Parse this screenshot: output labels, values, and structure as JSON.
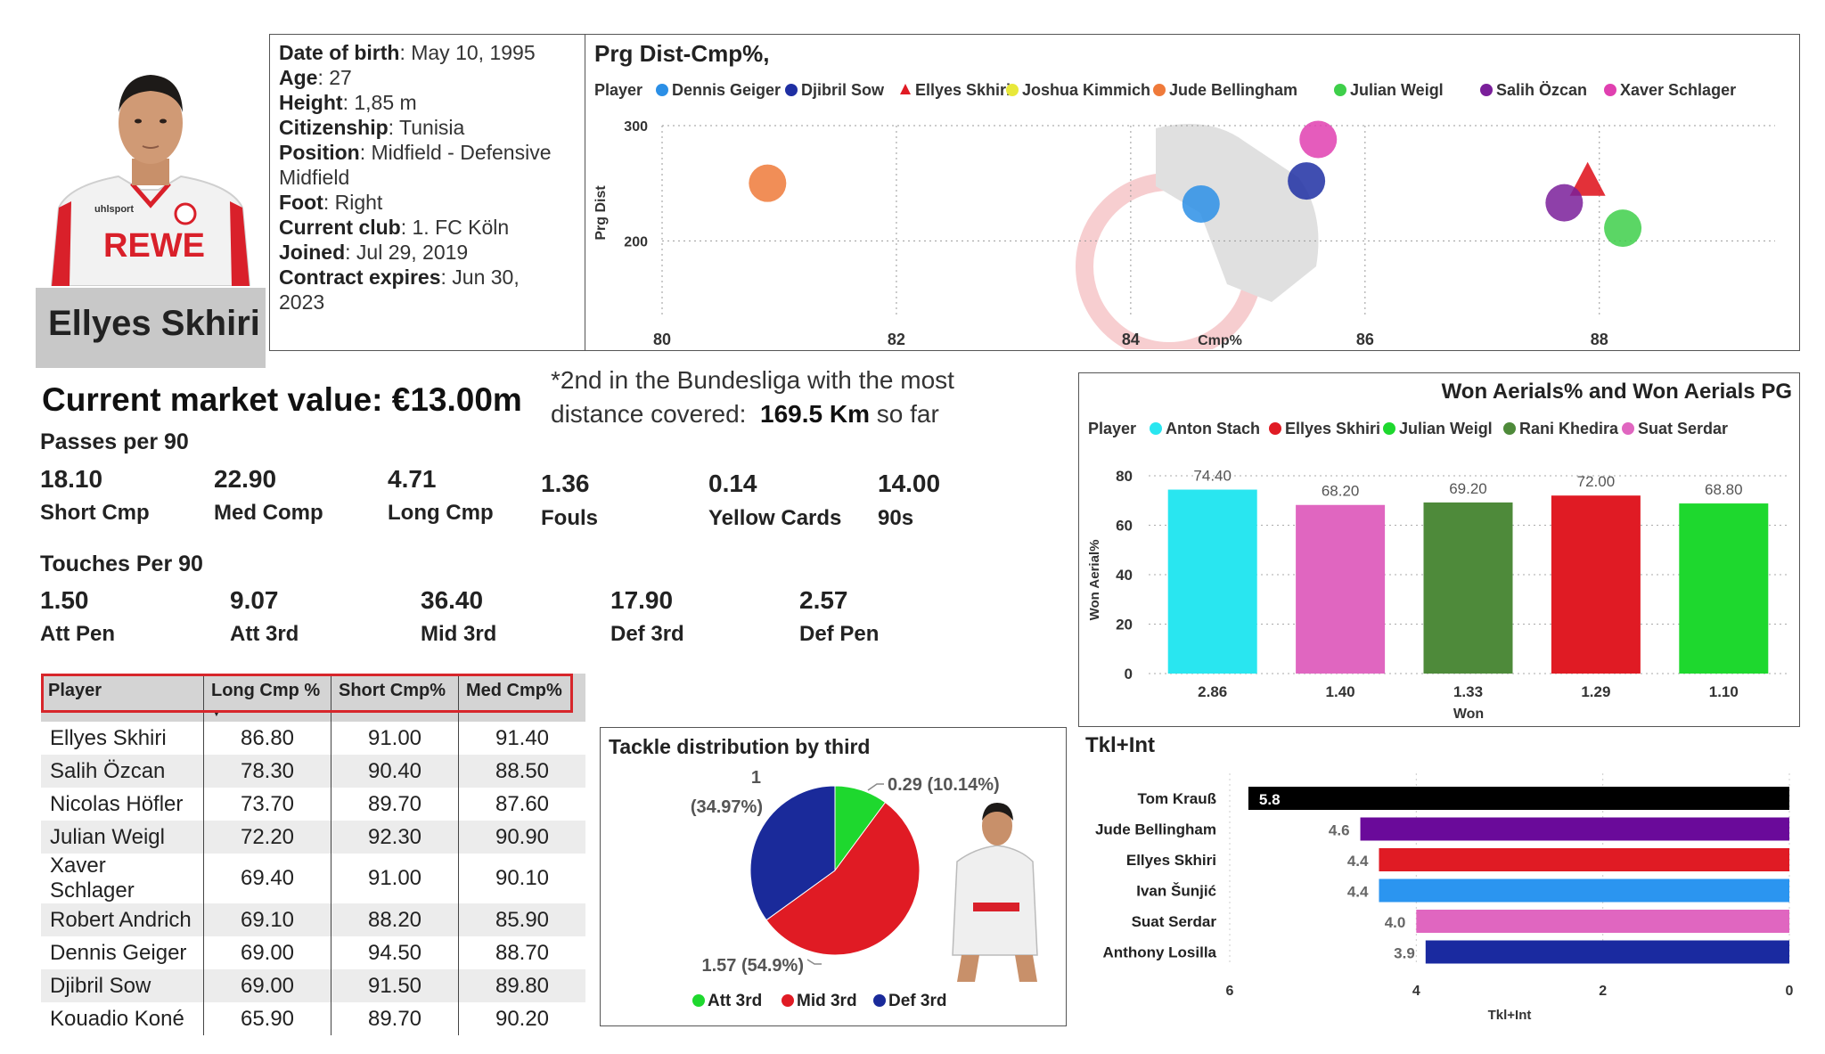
{
  "player": {
    "name": "Ellyes Skhiri",
    "info": [
      {
        "label": "Date of birth",
        "value": "May 10, 1995"
      },
      {
        "label": "Age",
        "value": "27"
      },
      {
        "label": "Height",
        "value": "1,85 m"
      },
      {
        "label": "Citizenship",
        "value": "Tunisia"
      },
      {
        "label": "Position",
        "value": "Midfield - Defensive"
      },
      {
        "label": "",
        "value": "Midfield"
      },
      {
        "label": "Foot",
        "value": "Right"
      },
      {
        "label": "Current club",
        "value": "1. FC Köln"
      },
      {
        "label": "Joined",
        "value": "Jul 29, 2019"
      },
      {
        "label": "Contract expires",
        "value": "Jun 30,"
      },
      {
        "label": "",
        "value": "2023"
      }
    ],
    "shirt_sponsor": "REWE",
    "shirt_brand": "uhlsport"
  },
  "market_value": "Current market value: €13.00m",
  "note": {
    "line1": "*2nd in the Bundesliga with the most",
    "line2_prefix": "distance covered:",
    "line2_value": "169.5 Km",
    "line2_suffix": "so far"
  },
  "passes": {
    "header": "Passes per 90",
    "items": [
      {
        "value": "18.10",
        "label": "Short Cmp"
      },
      {
        "value": "22.90",
        "label": "Med Comp"
      },
      {
        "value": "4.71",
        "label": "Long Cmp"
      },
      {
        "value": "1.36",
        "label": "Fouls"
      },
      {
        "value": "0.14",
        "label": "Yellow Cards"
      },
      {
        "value": "14.00",
        "label": "90s"
      }
    ]
  },
  "touches": {
    "header": "Touches Per 90",
    "items": [
      {
        "value": "1.50",
        "label": "Att Pen"
      },
      {
        "value": "9.07",
        "label": "Att 3rd"
      },
      {
        "value": "36.40",
        "label": "Mid 3rd"
      },
      {
        "value": "17.90",
        "label": "Def 3rd"
      },
      {
        "value": "2.57",
        "label": "Def Pen"
      }
    ]
  },
  "table": {
    "headers": [
      "Player",
      "Long Cmp %",
      "Short Cmp%",
      "Med Cmp%"
    ],
    "rows": [
      [
        "Ellyes Skhiri",
        "86.80",
        "91.00",
        "91.40"
      ],
      [
        "Salih Özcan",
        "78.30",
        "90.40",
        "88.50"
      ],
      [
        "Nicolas Höfler",
        "73.70",
        "89.70",
        "87.60"
      ],
      [
        "Julian Weigl",
        "72.20",
        "92.30",
        "90.90"
      ],
      [
        "Xaver Schlager",
        "69.40",
        "91.00",
        "90.10"
      ],
      [
        "Robert Andrich",
        "69.10",
        "88.20",
        "85.90"
      ],
      [
        "Dennis Geiger",
        "69.00",
        "94.50",
        "88.70"
      ],
      [
        "Djibril Sow",
        "69.00",
        "91.50",
        "89.80"
      ],
      [
        "Kouadio Koné",
        "65.90",
        "89.70",
        "90.20"
      ]
    ],
    "sort_indicator": "▼"
  },
  "chart_data": [
    {
      "type": "scatter",
      "title": "Prg Dist-Cmp%,",
      "xlabel": "Cmp%",
      "ylabel": "Prg Dist",
      "legend_title": "Player",
      "legend_position": "top",
      "xlim": [
        80,
        89.5
      ],
      "ylim": [
        150,
        300
      ],
      "xticks": [
        "80",
        "82",
        "84",
        "86",
        "88"
      ],
      "yticks": [
        "200",
        "300"
      ],
      "grid": true,
      "series": [
        {
          "name": "Dennis Geiger",
          "color": "#2b8fe6",
          "marker": "circle",
          "x": 84.6,
          "y": 232
        },
        {
          "name": "Djibril Sow",
          "color": "#1f2fa3",
          "marker": "circle",
          "x": 85.5,
          "y": 252
        },
        {
          "name": "Ellyes Skhiri",
          "color": "#e01b24",
          "marker": "triangle",
          "x": 87.9,
          "y": 253
        },
        {
          "name": "Joshua Kimmich",
          "color": "#e8e83a",
          "marker": "circle",
          "x": null,
          "y": null
        },
        {
          "name": "Jude Bellingham",
          "color": "#ef7a3a",
          "marker": "circle",
          "x": 80.9,
          "y": 250
        },
        {
          "name": "Julian Weigl",
          "color": "#3ecf4a",
          "marker": "circle",
          "x": 88.2,
          "y": 211
        },
        {
          "name": "Salih Özcan",
          "color": "#7a1f9a",
          "marker": "circle",
          "x": 87.7,
          "y": 233
        },
        {
          "name": "Xaver Schlager",
          "color": "#e040b0",
          "marker": "circle",
          "x": 85.6,
          "y": 288
        }
      ]
    },
    {
      "type": "bar",
      "title": "Won Aerials% and Won Aerials PG",
      "xlabel": "Won",
      "ylabel": "Won Aerial%",
      "legend_title": "Player",
      "legend_position": "top",
      "ylim": [
        0,
        80
      ],
      "yticks": [
        "0",
        "20",
        "40",
        "60",
        "80"
      ],
      "grid": true,
      "categories": [
        "2.86",
        "1.40",
        "1.33",
        "1.29",
        "1.10"
      ],
      "series": [
        {
          "name": "Anton Stach",
          "color": "#29e6f0",
          "value": 74.4,
          "label": "74.40"
        },
        {
          "name": "Suat Serdar",
          "color": "#e066c0",
          "value": 68.2,
          "label": "68.20"
        },
        {
          "name": "Rani Khedira",
          "color": "#4e8a3a",
          "value": 69.2,
          "label": "69.20"
        },
        {
          "name": "Ellyes Skhiri",
          "color": "#e01b24",
          "value": 72.0,
          "label": "72.00"
        },
        {
          "name": "Julian Weigl",
          "color": "#1ed82e",
          "value": 68.8,
          "label": "68.80"
        }
      ],
      "legend_order": [
        "Anton Stach",
        "Ellyes Skhiri",
        "Julian Weigl",
        "Rani Khedira",
        "Suat Serdar"
      ]
    },
    {
      "type": "pie",
      "title": "Tackle distribution by third",
      "slices": [
        {
          "name": "Att 3rd",
          "value": 0.29,
          "label": "0.29 (10.14%)",
          "color": "#1ed82e"
        },
        {
          "name": "Mid 3rd",
          "value": 1.57,
          "label": "1.57 (54.9%)",
          "color": "#e01b24"
        },
        {
          "name": "Def 3rd",
          "value": 1.0,
          "label_a": "1",
          "label_b": "(34.97%)",
          "color": "#1a2a9a"
        }
      ],
      "legend_position": "bottom"
    },
    {
      "type": "bar",
      "orientation": "horizontal",
      "title": "Tkl+Int",
      "xlabel": "Tkl+Int",
      "xlim": [
        6,
        0
      ],
      "xticks": [
        "6",
        "4",
        "2",
        "0"
      ],
      "categories": [
        "Tom Krauß",
        "Jude Bellingham",
        "Ellyes Skhiri",
        "Ivan Šunjić",
        "Suat Serdar",
        "Anthony Losilla"
      ],
      "values": [
        5.8,
        4.6,
        4.4,
        4.4,
        4.0,
        3.9
      ],
      "labels": [
        "5.8",
        "4.6",
        "4.4",
        "4.4",
        "4.0",
        "3.9"
      ],
      "colors": [
        "#000000",
        "#6a0a9a",
        "#e01b24",
        "#2b95f0",
        "#e066c0",
        "#1a2aa0"
      ]
    }
  ]
}
